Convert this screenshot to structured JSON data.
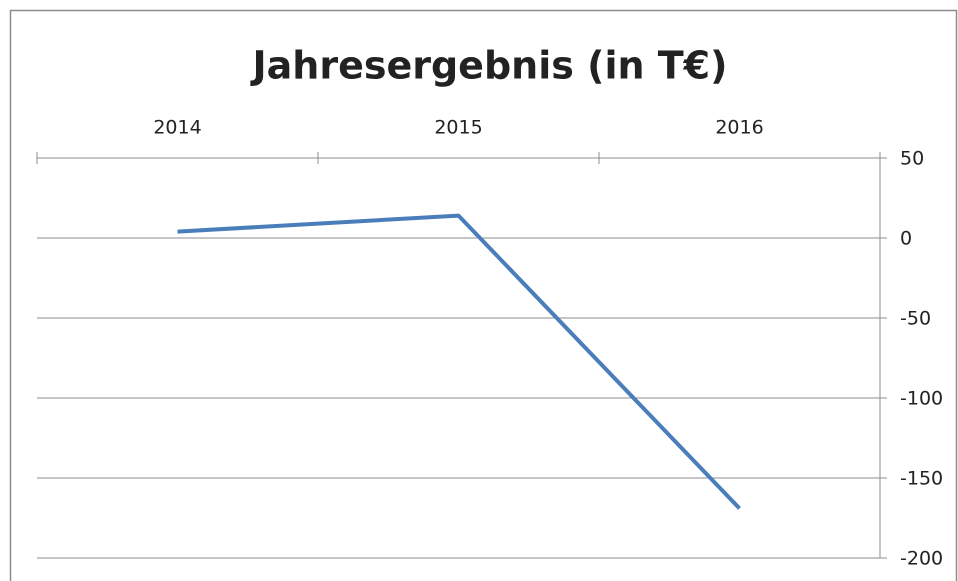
{
  "chart_data": {
    "type": "line",
    "title": "Jahresergebnis (in T€)",
    "categories": [
      "2014",
      "2015",
      "2016"
    ],
    "series": [
      {
        "name": "Jahresergebnis",
        "color": "#4a7ebb",
        "values": [
          4,
          14,
          -169
        ]
      }
    ],
    "ylim": [
      -200,
      50
    ],
    "yticks": [
      50,
      0,
      -50,
      -100,
      -150,
      -200
    ],
    "grid": true
  }
}
